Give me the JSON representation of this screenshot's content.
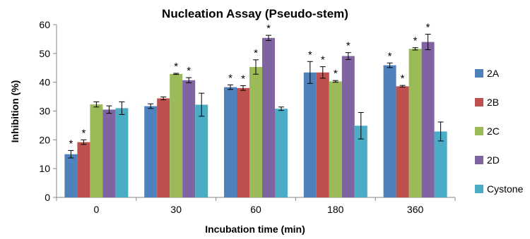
{
  "chart_data": {
    "type": "bar",
    "title": "Nucleation Assay (Pseudo-stem)",
    "xlabel": "Incubation time (min)",
    "ylabel": "Inhibition (%)",
    "ylim": [
      0,
      60
    ],
    "yticks": [
      0,
      10,
      20,
      30,
      40,
      50,
      60
    ],
    "categories": [
      "0",
      "30",
      "60",
      "180",
      "360"
    ],
    "grid": false,
    "legend_position": "right",
    "significance_marker": "*",
    "series": [
      {
        "name": "2A",
        "color": "#4F81BD",
        "values": [
          15.0,
          31.7,
          38.3,
          43.4,
          45.9
        ],
        "errors": [
          1.3,
          0.8,
          0.8,
          3.8,
          0.8
        ],
        "significant": [
          true,
          false,
          true,
          true,
          true
        ]
      },
      {
        "name": "2B",
        "color": "#C0504D",
        "values": [
          19.2,
          34.4,
          38.0,
          43.4,
          38.6
        ],
        "errors": [
          0.8,
          0.5,
          0.8,
          2.0,
          0.3
        ],
        "significant": [
          true,
          false,
          true,
          true,
          true
        ]
      },
      {
        "name": "2C",
        "color": "#9BBB59",
        "values": [
          32.3,
          42.9,
          45.3,
          40.3,
          51.6
        ],
        "errors": [
          0.9,
          0.2,
          2.5,
          0.3,
          0.4
        ],
        "significant": [
          false,
          true,
          true,
          true,
          true
        ]
      },
      {
        "name": "2D",
        "color": "#8064A2",
        "values": [
          30.5,
          40.7,
          55.4,
          49.1,
          54.0
        ],
        "errors": [
          1.3,
          0.9,
          0.9,
          1.2,
          2.7
        ],
        "significant": [
          false,
          true,
          true,
          true,
          true
        ]
      },
      {
        "name": "Cystone",
        "color": "#4BACC6",
        "values": [
          31.0,
          32.2,
          30.8,
          24.9,
          22.9
        ],
        "errors": [
          2.2,
          4.0,
          0.6,
          4.6,
          3.3
        ],
        "significant": [
          false,
          false,
          false,
          false,
          false
        ]
      }
    ]
  }
}
